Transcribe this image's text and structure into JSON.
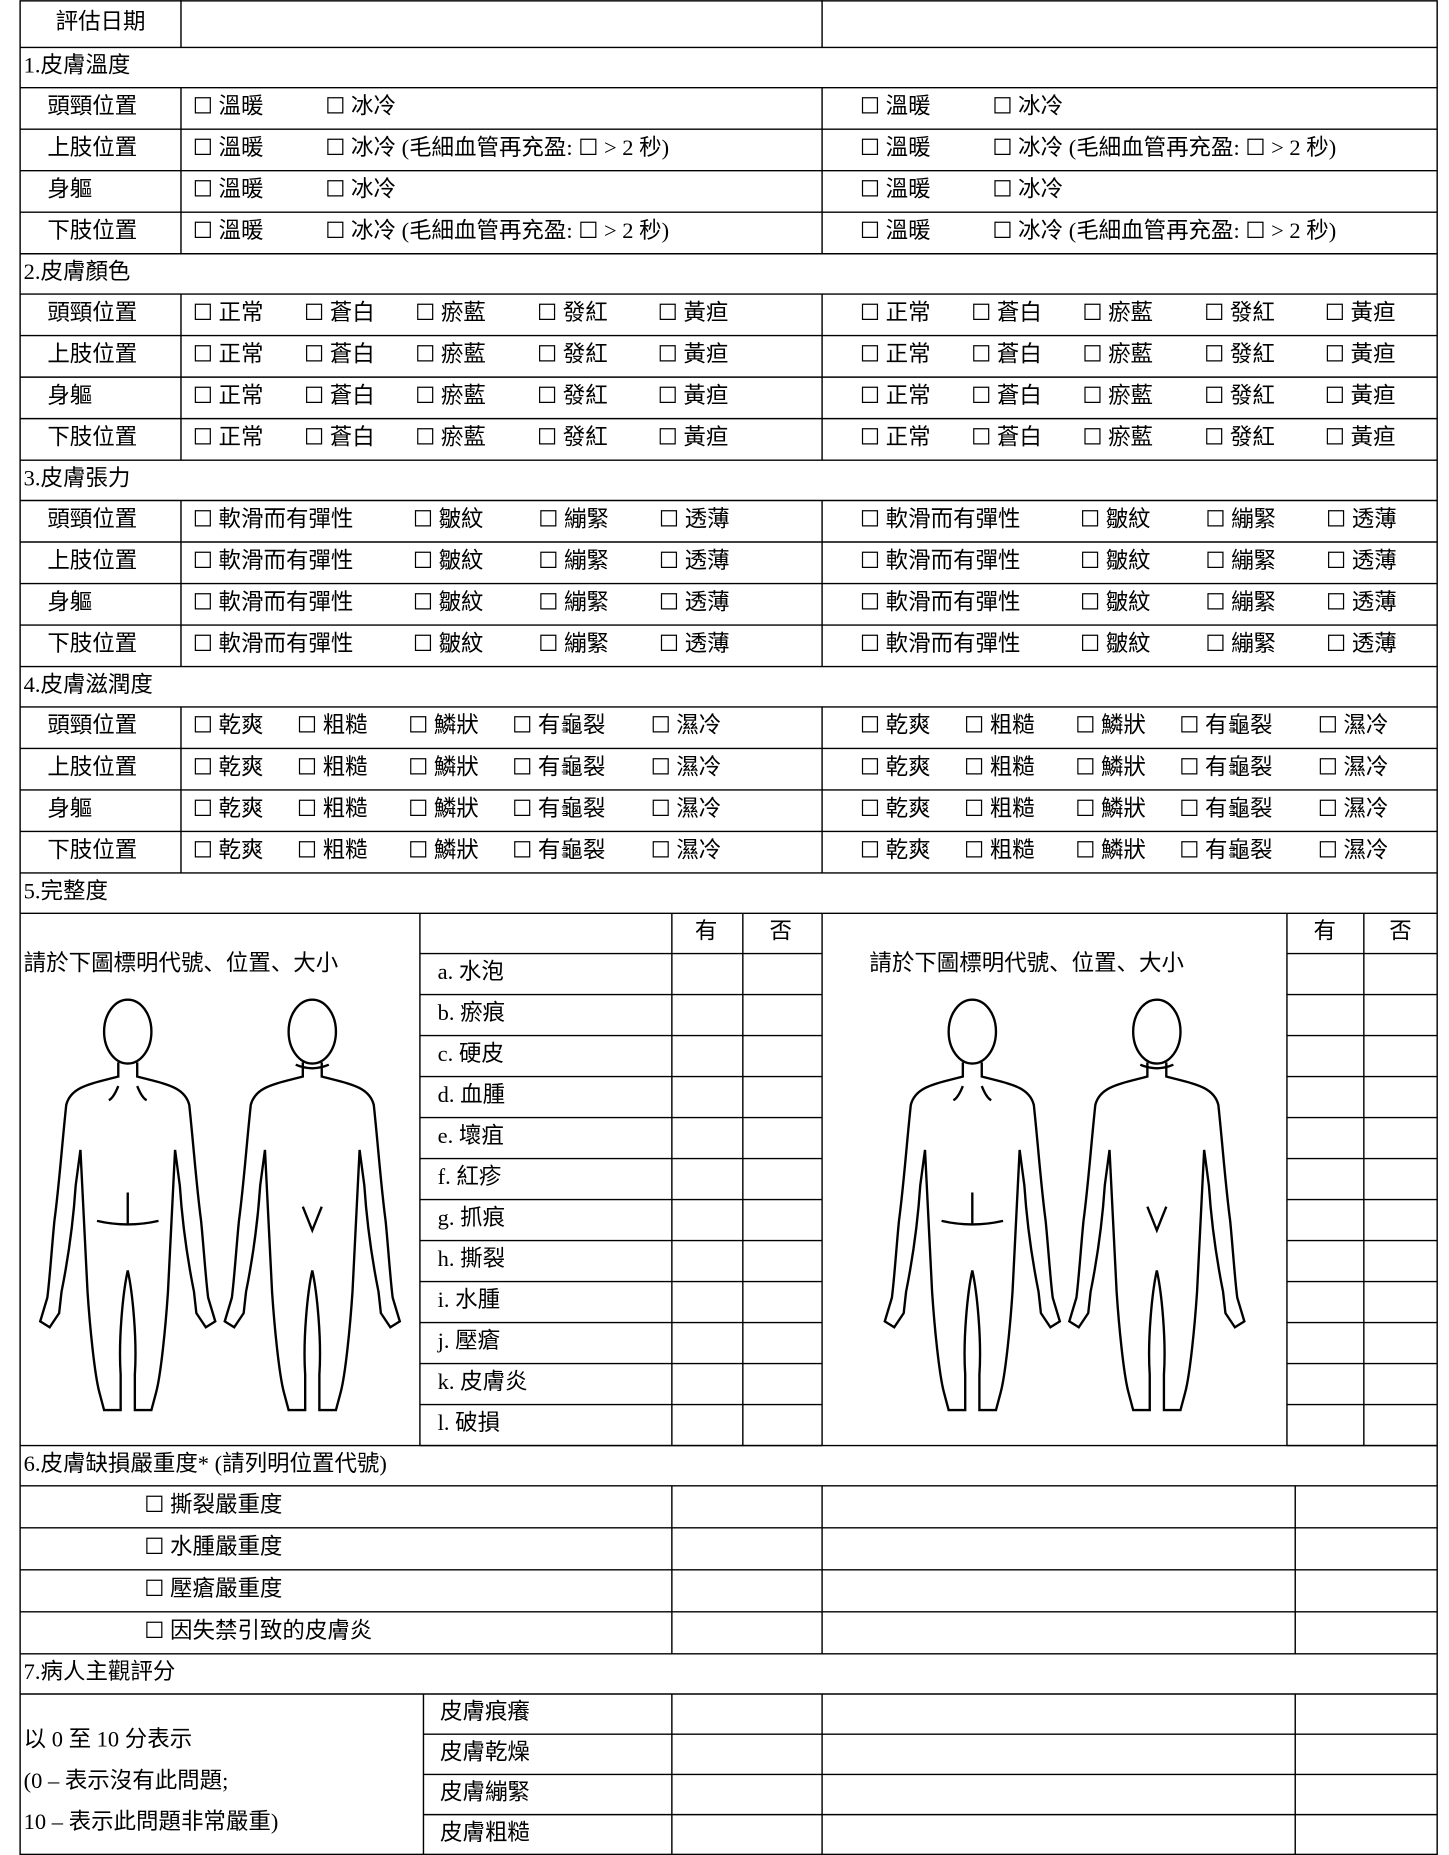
{
  "assessment_date_label": "評估日期",
  "sections": [
    {
      "title": "1.皮膚溫度",
      "rows": [
        {
          "label": "頭頸位置",
          "options": [
            "☐ 溫暖",
            "☐ 冰冷"
          ]
        },
        {
          "label": "上肢位置",
          "options": [
            "☐ 溫暖",
            "☐ 冰冷 (毛細血管再充盈: ☐ > 2 秒)"
          ]
        },
        {
          "label": "身軀",
          "options": [
            "☐ 溫暖",
            "☐ 冰冷"
          ]
        },
        {
          "label": "下肢位置",
          "options": [
            "☐ 溫暖",
            "☐ 冰冷 (毛細血管再充盈: ☐ > 2 秒)"
          ]
        }
      ]
    },
    {
      "title": "2.皮膚顏色",
      "rows": [
        {
          "label": "頭頸位置",
          "options": [
            "☐ 正常",
            "☐ 蒼白",
            "☐ 瘀藍",
            "☐ 發紅",
            "☐ 黃疸"
          ]
        },
        {
          "label": "上肢位置",
          "options": [
            "☐ 正常",
            "☐ 蒼白",
            "☐ 瘀藍",
            "☐ 發紅",
            "☐ 黃疸"
          ]
        },
        {
          "label": "身軀",
          "options": [
            "☐ 正常",
            "☐ 蒼白",
            "☐ 瘀藍",
            "☐ 發紅",
            "☐ 黃疸"
          ]
        },
        {
          "label": "下肢位置",
          "options": [
            "☐ 正常",
            "☐ 蒼白",
            "☐ 瘀藍",
            "☐ 發紅",
            "☐ 黃疸"
          ]
        }
      ]
    },
    {
      "title": "3.皮膚張力",
      "rows": [
        {
          "label": "頭頸位置",
          "options": [
            "☐ 軟滑而有彈性",
            "☐ 皺紋",
            "☐ 繃緊",
            "☐ 透薄"
          ]
        },
        {
          "label": "上肢位置",
          "options": [
            "☐ 軟滑而有彈性",
            "☐ 皺紋",
            "☐ 繃緊",
            "☐ 透薄"
          ]
        },
        {
          "label": "身軀",
          "options": [
            "☐ 軟滑而有彈性",
            "☐ 皺紋",
            "☐ 繃緊",
            "☐ 透薄"
          ]
        },
        {
          "label": "下肢位置",
          "options": [
            "☐ 軟滑而有彈性",
            "☐ 皺紋",
            "☐ 繃緊",
            "☐ 透薄"
          ]
        }
      ]
    },
    {
      "title": "4.皮膚滋潤度",
      "rows": [
        {
          "label": "頭頸位置",
          "options": [
            "☐ 乾爽",
            "☐ 粗糙",
            "☐ 鱗狀",
            "☐ 有龜裂",
            "☐ 濕冷"
          ]
        },
        {
          "label": "上肢位置",
          "options": [
            "☐ 乾爽",
            "☐ 粗糙",
            "☐ 鱗狀",
            "☐ 有龜裂",
            "☐ 濕冷"
          ]
        },
        {
          "label": "身軀",
          "options": [
            "☐ 乾爽",
            "☐ 粗糙",
            "☐ 鱗狀",
            "☐ 有龜裂",
            "☐ 濕冷"
          ]
        },
        {
          "label": "下肢位置",
          "options": [
            "☐ 乾爽",
            "☐ 粗糙",
            "☐ 鱗狀",
            "☐ 有龜裂",
            "☐ 濕冷"
          ]
        }
      ]
    }
  ],
  "integrity": {
    "title": "5.完整度",
    "instruction": "請於下圖標明代號、位置、大小",
    "yes": "有",
    "no": "否",
    "items": [
      "a. 水泡",
      "b. 瘀痕",
      "c. 硬皮",
      "d. 血腫",
      "e. 壞疽",
      "f. 紅疹",
      "g. 抓痕",
      "h. 撕裂",
      "i. 水腫",
      "j. 壓瘡",
      "k. 皮膚炎",
      "l. 破損"
    ]
  },
  "severity": {
    "title": "6.皮膚缺損嚴重度* (請列明位置代號)",
    "items": [
      "☐ 撕裂嚴重度",
      "☐ 水腫嚴重度",
      "☐ 壓瘡嚴重度",
      "☐ 因失禁引致的皮膚炎"
    ]
  },
  "subjective": {
    "title": "7.病人主觀評分",
    "note": [
      "以 0 至 10 分表示",
      "(0 – 表示沒有此問題;",
      "10 – 表示此問題非常嚴重)"
    ],
    "items": [
      "皮膚痕癢",
      "皮膚乾燥",
      "皮膚繃緊",
      "皮膚粗糙"
    ]
  }
}
